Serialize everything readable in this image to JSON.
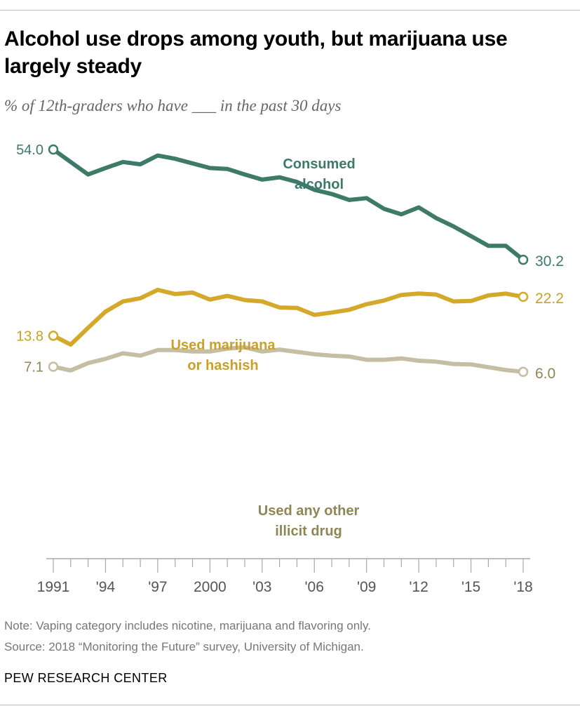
{
  "header": {
    "title": "Alcohol use drops among youth, but marijuana use largely steady",
    "subtitle": "% of 12th-graders who have ___ in the past 30 days"
  },
  "chart_data": {
    "type": "line",
    "x": [
      1991,
      1992,
      1993,
      1994,
      1995,
      1996,
      1997,
      1998,
      1999,
      2000,
      2001,
      2002,
      2003,
      2004,
      2005,
      2006,
      2007,
      2008,
      2009,
      2010,
      2011,
      2012,
      2013,
      2014,
      2015,
      2016,
      2017,
      2018
    ],
    "xticks": [
      {
        "value": 1991,
        "label": "1991"
      },
      {
        "value": 1994,
        "label": "'94"
      },
      {
        "value": 1997,
        "label": "'97"
      },
      {
        "value": 2000,
        "label": "2000"
      },
      {
        "value": 2003,
        "label": "'03"
      },
      {
        "value": 2006,
        "label": "'06"
      },
      {
        "value": 2009,
        "label": "'09"
      },
      {
        "value": 2012,
        "label": "'12"
      },
      {
        "value": 2015,
        "label": "'15"
      },
      {
        "value": 2018,
        "label": "'18"
      }
    ],
    "xlim": [
      1991,
      2018
    ],
    "ylim": [
      0,
      54
    ],
    "grid": false,
    "series": [
      {
        "name": "Consumed alcohol",
        "color": "#3d7a68",
        "values": [
          54.0,
          51.3,
          48.6,
          50.0,
          51.3,
          50.8,
          52.7,
          52.0,
          51.0,
          50.0,
          49.8,
          48.6,
          47.5,
          48.0,
          47.0,
          45.3,
          44.4,
          43.1,
          43.5,
          41.2,
          40.0,
          41.5,
          39.2,
          37.4,
          35.3,
          33.2,
          33.2,
          30.2
        ],
        "start_label": "54.0",
        "end_label": "30.2"
      },
      {
        "name": "Used marijuana or hashish",
        "color": "#d4a829",
        "values": [
          13.8,
          11.9,
          15.5,
          19.0,
          21.2,
          21.9,
          23.7,
          22.8,
          23.1,
          21.6,
          22.4,
          21.5,
          21.2,
          19.9,
          19.8,
          18.3,
          18.8,
          19.4,
          20.6,
          21.4,
          22.6,
          22.9,
          22.7,
          21.2,
          21.3,
          22.5,
          22.9,
          22.2
        ],
        "start_label": "13.8",
        "end_label": "22.2"
      },
      {
        "name": "Used any other illicit drug",
        "color": "#c5bea3",
        "values": [
          7.1,
          6.3,
          7.9,
          8.8,
          10.0,
          9.5,
          10.7,
          10.7,
          10.4,
          10.4,
          11.0,
          11.3,
          10.4,
          10.8,
          10.3,
          9.8,
          9.5,
          9.3,
          8.6,
          8.6,
          8.9,
          8.4,
          8.2,
          7.7,
          7.6,
          7.0,
          6.4,
          6.0
        ],
        "start_label": "7.1",
        "end_label": "6.0"
      }
    ],
    "annotations": [
      {
        "series": 0,
        "lines": [
          "Consumed",
          "alcohol"
        ],
        "color": "#3d7a68"
      },
      {
        "series": 1,
        "lines": [
          "Used marijuana",
          "or hashish"
        ],
        "color": "#c9a02a"
      },
      {
        "series": 2,
        "lines": [
          "Used any other",
          "illicit drug"
        ],
        "color": "#8f8658"
      }
    ],
    "label_colors": [
      "#3d7a68",
      "#c9a02a",
      "#8f8658"
    ]
  },
  "footer": {
    "note": "Note: Vaping category includes nicotine, marijuana and flavoring only.",
    "source": "Source: 2018 “Monitoring the Future” survey, University of Michigan.",
    "org": "PEW RESEARCH CENTER"
  }
}
